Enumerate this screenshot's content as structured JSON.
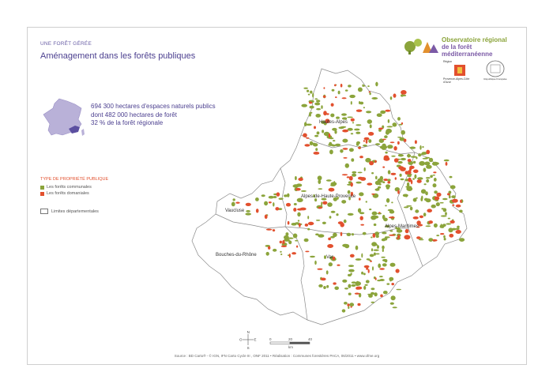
{
  "header": {
    "kicker": "UNE FORÊT GÉRÉE",
    "title": "Aménagement dans les forêts publiques"
  },
  "logo": {
    "line1": "Observatoire régional",
    "line2": "de la forêt méditerranéenne",
    "colors": {
      "green": "#8ba43b",
      "purple": "#7b5aa6",
      "orange": "#e2902e"
    }
  },
  "partners": {
    "region_label": "Région",
    "region_name": "Provence-Alpes-Côte d'Azur",
    "seal_name": "République Française"
  },
  "stats": {
    "line1": "694 300 hectares d'espaces naturels publics",
    "line2": "dont 482 000 hectares de forêt",
    "line3": "32 % de la forêt régionale"
  },
  "legend": {
    "title": "TYPE DE PROPRIÉTÉ PUBLIQUE",
    "items": [
      {
        "label": "Les forêts communales",
        "color": "#8ba43b"
      },
      {
        "label": "Les forêts domaniales",
        "color": "#e2502e"
      }
    ],
    "limits_label": "Limites départementales"
  },
  "map": {
    "departments": [
      "Hautes-Alpes",
      "Alpes-de-Haute-Provence",
      "Vaucluse",
      "Alpes-Maritimes",
      "Bouches-du-Rhône",
      "Var"
    ],
    "colors": {
      "communal": "#8ba43b",
      "domanial": "#e2502e",
      "outline": "#8a8a8a"
    }
  },
  "compass": {
    "n": "N",
    "e": "E",
    "s": "S",
    "o": "O"
  },
  "scale": {
    "ticks": [
      "0",
      "20",
      "40"
    ],
    "unit": "km"
  },
  "source": "Source : BD Carto® - © IGN, IFN Carto Cycle III , ONF 2011 • Réalisation : Communes forestières PACA, 06/2011 • www.ofme.org"
}
